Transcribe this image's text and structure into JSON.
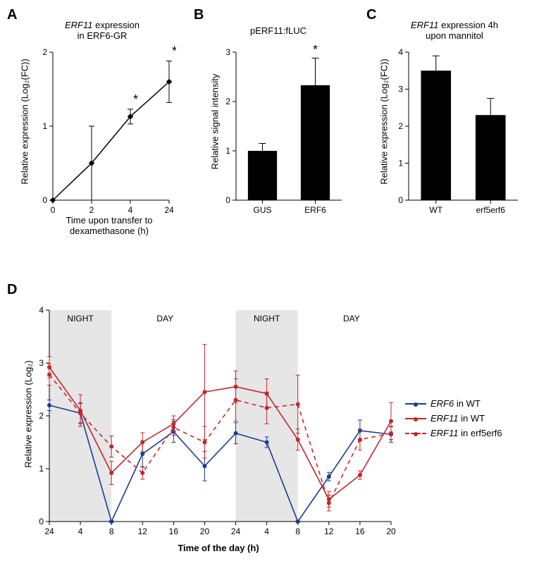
{
  "panelA": {
    "label": "A",
    "title_line1": "ERF11",
    "title_line2": " expression",
    "title_line3": "in ERF6-GR",
    "ylabel": "Relative expression (Log₂(FC))",
    "xlabel_line1": "Time upon transfer to",
    "xlabel_line2": "dexamethasone (h)",
    "ylim": [
      0,
      2
    ],
    "ytick_step": 1,
    "x_categories": [
      "0",
      "2",
      "4",
      "24"
    ],
    "values": [
      0,
      0.5,
      1.13,
      1.6
    ],
    "err_low": [
      0,
      0.5,
      0.1,
      0.28
    ],
    "err_high": [
      0,
      0.5,
      0.1,
      0.28
    ],
    "star_indices": [
      2,
      3
    ],
    "line_color": "#000000",
    "marker_color": "#000000",
    "background_color": "#ffffff"
  },
  "panelB": {
    "label": "B",
    "title": "pERF11:fLUC",
    "ylabel": "Relative signal intensity",
    "ylim": [
      0,
      3
    ],
    "ytick_step": 1,
    "categories": [
      "GUS",
      "ERF6"
    ],
    "values": [
      1.0,
      2.33
    ],
    "err": [
      0.15,
      0.55
    ],
    "star_indices": [
      1
    ],
    "bar_color": "#000000",
    "background_color": "#ffffff"
  },
  "panelC": {
    "label": "C",
    "title_line1": "ERF11",
    "title_line2": " expression 4h",
    "title_line3": "upon mannitol",
    "ylabel": "Relative expression (Log₂(FC))",
    "ylim": [
      0,
      4
    ],
    "ytick_step": 1,
    "categories": [
      "WT",
      "erf5erf6"
    ],
    "values": [
      3.5,
      2.3
    ],
    "err": [
      0.4,
      0.45
    ],
    "bar_color": "#000000",
    "background_color": "#ffffff"
  },
  "panelD": {
    "label": "D",
    "ylabel": "Relative expression (Log₂)",
    "xlabel": "Time of the day (h)",
    "ylim": [
      0,
      4
    ],
    "ytick_step": 1,
    "x_categories": [
      "24",
      "4",
      "8",
      "12",
      "16",
      "20",
      "24",
      "4",
      "8",
      "12",
      "16",
      "20"
    ],
    "night_ranges": [
      [
        0,
        2
      ],
      [
        6,
        8
      ]
    ],
    "night_label": "NIGHT",
    "day_label": "DAY",
    "series": [
      {
        "name": "ERF6 in WT",
        "color": "#1f3a93",
        "dash": "solid",
        "values": [
          2.2,
          2.05,
          0.0,
          1.28,
          1.7,
          1.05,
          1.67,
          1.5,
          0.0,
          0.85,
          1.72,
          1.65
        ],
        "err": [
          0.1,
          0.18,
          0.02,
          0.25,
          0.2,
          0.28,
          0.2,
          0.1,
          0.02,
          0.08,
          0.2,
          0.15
        ]
      },
      {
        "name": "ERF11 in WT",
        "color": "#c1272d",
        "dash": "solid",
        "values": [
          2.92,
          2.1,
          0.92,
          1.5,
          1.85,
          2.45,
          2.55,
          2.42,
          1.55,
          0.42,
          0.88,
          1.9
        ],
        "err": [
          0.2,
          0.3,
          0.22,
          0.18,
          0.15,
          0.9,
          0.3,
          0.28,
          0.2,
          0.15,
          0.08,
          0.35
        ]
      },
      {
        "name": "ERF11 in erf5erf6",
        "color": "#c1272d",
        "dash": "dashed",
        "values": [
          2.78,
          2.05,
          1.42,
          0.92,
          1.78,
          1.5,
          2.3,
          2.15,
          2.22,
          0.35,
          1.55,
          1.67
        ],
        "err": [
          0.2,
          0.2,
          0.2,
          0.12,
          0.15,
          0.3,
          0.4,
          0.3,
          0.55,
          0.15,
          0.2,
          0.12
        ]
      }
    ],
    "legend_items": [
      {
        "text_italic": "ERF6",
        "text_rest": " in WT"
      },
      {
        "text_italic": "ERF11",
        "text_rest": " in WT"
      },
      {
        "text_italic": "ERF11",
        "text_rest": " in erf5erf6"
      }
    ],
    "background_color": "#ffffff"
  }
}
